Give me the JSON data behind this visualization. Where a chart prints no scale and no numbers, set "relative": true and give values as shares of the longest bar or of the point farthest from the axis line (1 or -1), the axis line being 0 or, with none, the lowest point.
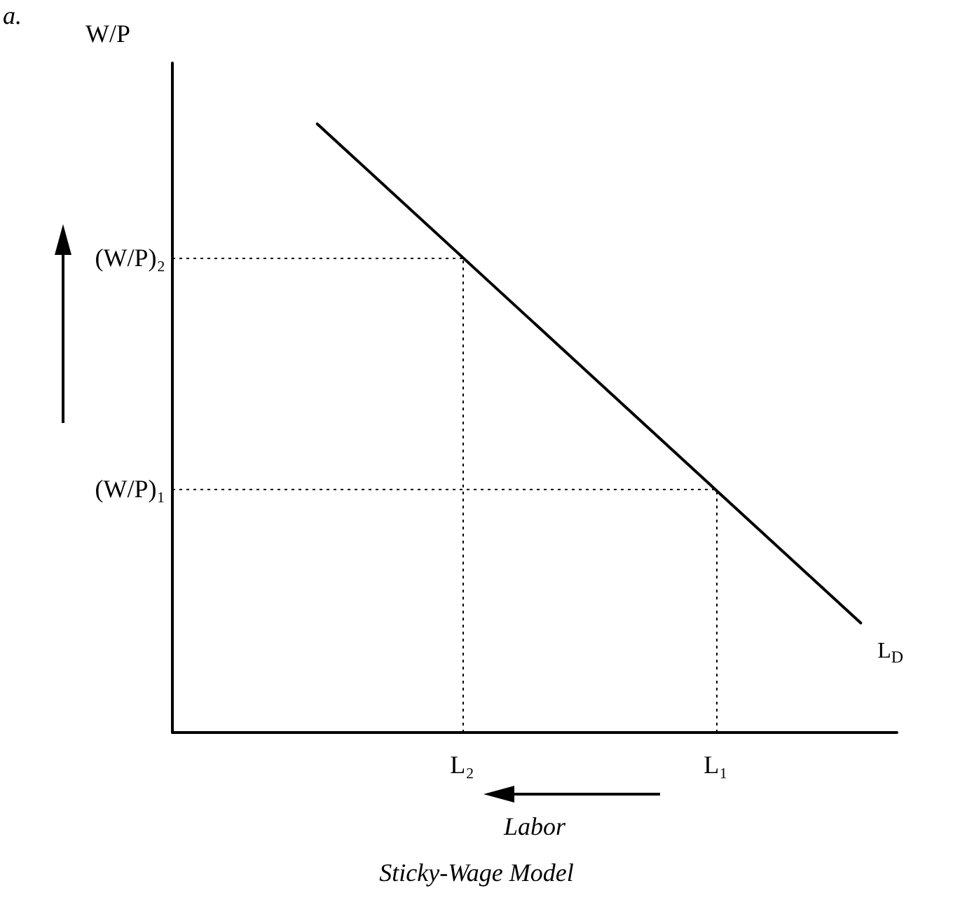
{
  "chart_data": {
    "type": "line",
    "title": "Sticky-Wage Model",
    "xlabel": "Labor",
    "ylabel": "W/P",
    "annotations": [
      "a."
    ],
    "relative": true,
    "categories": [
      null,
      null,
      null,
      null,
      null,
      null,
      null,
      null,
      "L₂",
      null,
      null,
      null,
      null,
      null,
      null,
      "L₁",
      null,
      null,
      null,
      null,
      null
    ],
    "grid": false,
    "legend": false,
    "marker": "none",
    "series": [
      {
        "name": "L$_{D}$",
        "color": "#000000",
        "line_style": "solid",
        "values": [
          null,
          null,
          null,
          null,
          1,
          null,
          null,
          null,
          null,
          null,
          null,
          null,
          null,
          null,
          null,
          null,
          null,
          null,
          null,
          0.18,
          null
        ]
      }
    ],
    "ref_lines": [
      {
        "axis": "y",
        "value": 0.78,
        "label": "(W/P)₂",
        "color": "#000000",
        "line_style": "dotted"
      },
      {
        "axis": "y",
        "value": 0.4,
        "label": "(W/P)₁",
        "color": "#000000",
        "line_style": "dotted"
      },
      {
        "axis": "x",
        "value": "L₂",
        "color": "#000000",
        "line_style": "dotted"
      },
      {
        "axis": "x",
        "value": "L₁",
        "color": "#000000",
        "line_style": "dotted"
      }
    ]
  }
}
